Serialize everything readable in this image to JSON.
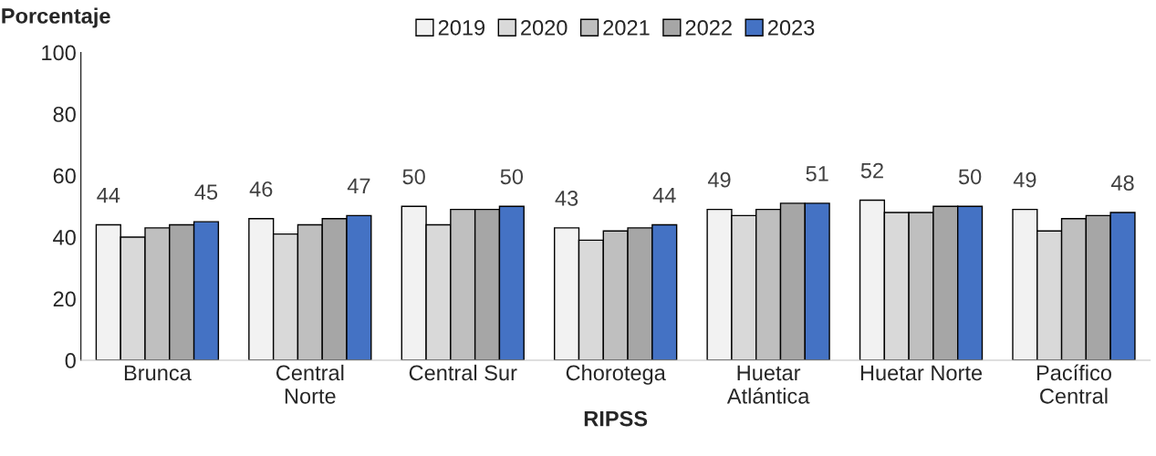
{
  "chart_data": {
    "type": "bar",
    "ylabel": "Porcentaje",
    "xlabel": "RIPSS",
    "categories": [
      "Brunca",
      "Central\nNorte",
      "Central Sur",
      "Chorotega",
      "Huetar\nAtlántica",
      "Huetar Norte",
      "Pacífico\nCentral"
    ],
    "series": [
      {
        "name": "2019",
        "color": "#f2f2f2",
        "values": [
          44,
          46,
          50,
          43,
          49,
          52,
          49
        ],
        "value_labels": [
          "44",
          "46",
          "50",
          "43",
          "49",
          "52",
          "49"
        ]
      },
      {
        "name": "2020",
        "color": "#d9d9d9",
        "values": [
          40,
          41,
          44,
          39,
          47,
          48,
          42
        ]
      },
      {
        "name": "2021",
        "color": "#bfbfbf",
        "values": [
          43,
          44,
          49,
          42,
          49,
          48,
          46
        ]
      },
      {
        "name": "2022",
        "color": "#a6a6a6",
        "values": [
          44,
          46,
          49,
          43,
          51,
          50,
          47
        ]
      },
      {
        "name": "2023",
        "color": "#4472c4",
        "values": [
          45,
          47,
          50,
          44,
          51,
          50,
          48
        ],
        "value_labels": [
          "45",
          "47",
          "50",
          "44",
          "51",
          "50",
          "48"
        ]
      }
    ],
    "ylim": [
      0,
      100
    ],
    "yticks": [
      0,
      20,
      40,
      60,
      80,
      100
    ],
    "grid": false,
    "legend": "top"
  }
}
